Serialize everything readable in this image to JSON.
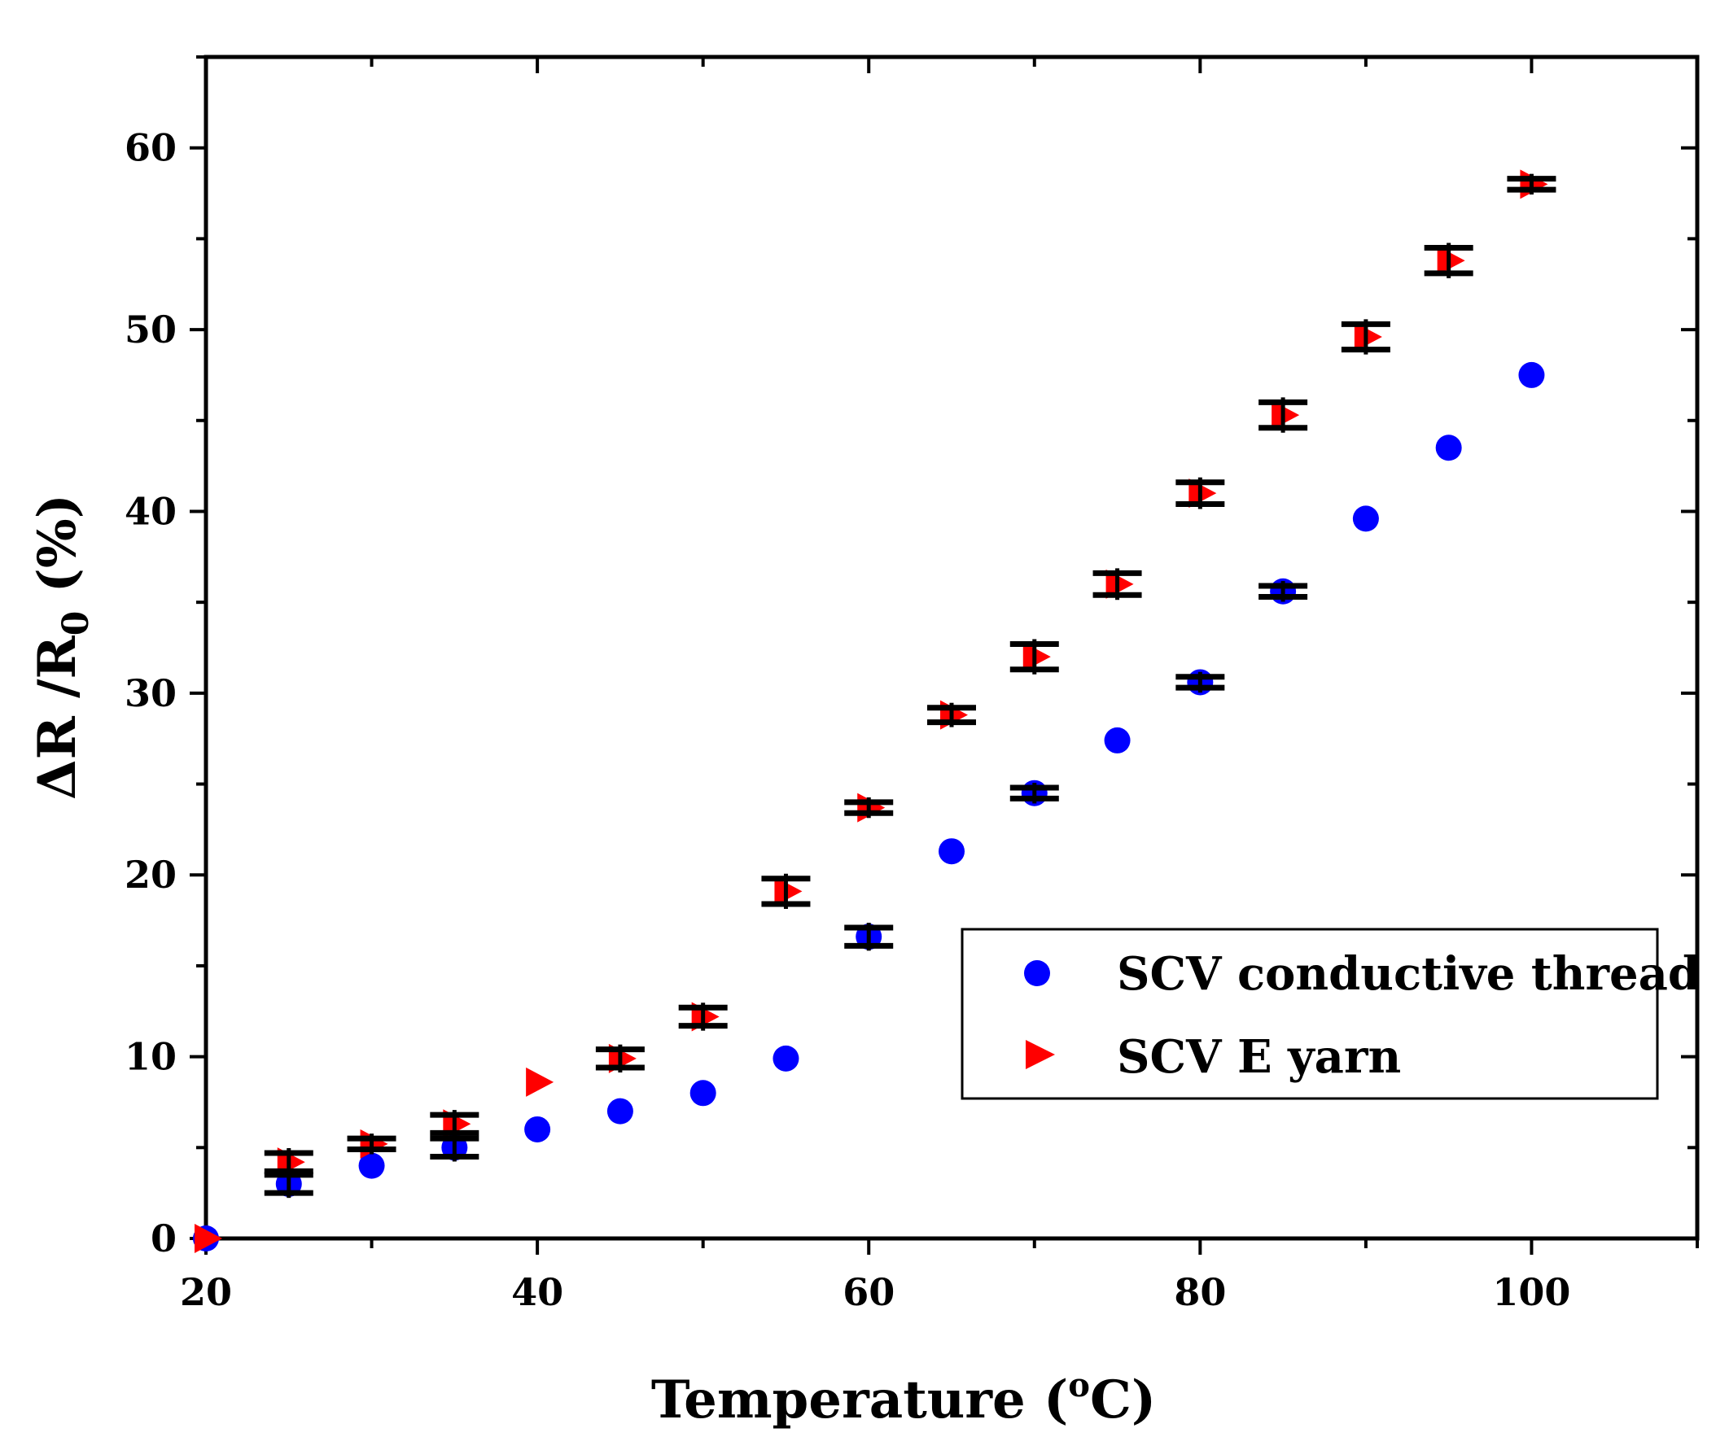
{
  "chart_data": {
    "type": "scatter",
    "xlabel": "Temperature (",
    "xlabel_sup": "o",
    "xlabel_suffix": "C)",
    "ylabel": "ΔR /R",
    "ylabel_sub": "0",
    "ylabel_suffix": " (%)",
    "xlim": [
      20,
      110
    ],
    "ylim": [
      0,
      65
    ],
    "xticks": [
      20,
      40,
      60,
      80,
      100
    ],
    "yticks": [
      0,
      10,
      20,
      30,
      40,
      50,
      60
    ],
    "xtick_labels": [
      "20",
      "40",
      "60",
      "80",
      "100"
    ],
    "ytick_labels": [
      "0",
      "10",
      "20",
      "30",
      "40",
      "50",
      "60"
    ],
    "legend_position": "lower-right",
    "series": [
      {
        "name": "SCV conductive thread",
        "marker": "circle",
        "color": "#0000ff",
        "x": [
          20,
          25,
          30,
          35,
          40,
          45,
          50,
          55,
          60,
          65,
          70,
          75,
          80,
          85,
          90,
          95,
          100
        ],
        "y": [
          0,
          3.0,
          4.0,
          5.0,
          6.0,
          7.0,
          8.0,
          9.9,
          16.6,
          21.3,
          24.5,
          27.4,
          30.6,
          35.6,
          39.6,
          43.5,
          47.5
        ],
        "err": [
          0,
          0.5,
          0,
          0.5,
          0,
          0,
          0,
          0,
          0.5,
          0,
          0.3,
          0,
          0.3,
          0.3,
          0,
          0,
          0
        ]
      },
      {
        "name": "SCV E yarn",
        "marker": "triangle-right",
        "color": "#ff0000",
        "x": [
          20,
          25,
          30,
          35,
          40,
          45,
          50,
          55,
          60,
          65,
          70,
          75,
          80,
          85,
          90,
          95,
          100
        ],
        "y": [
          0,
          4.2,
          5.2,
          6.3,
          8.6,
          9.9,
          12.2,
          19.1,
          23.7,
          28.8,
          32.0,
          36.0,
          41.0,
          45.3,
          49.6,
          53.8,
          58.0
        ],
        "err": [
          0,
          0.5,
          0.3,
          0.5,
          0,
          0.5,
          0.5,
          0.7,
          0.3,
          0.4,
          0.7,
          0.6,
          0.6,
          0.7,
          0.7,
          0.7,
          0.3
        ]
      }
    ]
  }
}
